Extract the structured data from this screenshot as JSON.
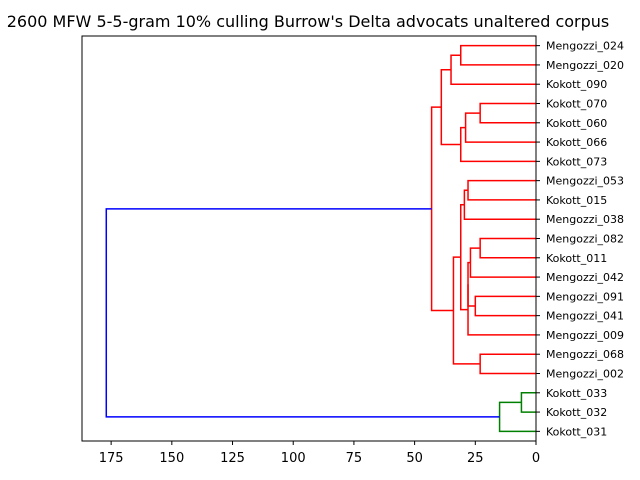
{
  "chart_data": {
    "type": "dendrogram",
    "orientation": "left",
    "title": "2600 MFW 5-5-gram 10% culling Burrow's Delta advocats unaltered corpus",
    "xlim": [
      187,
      0
    ],
    "xticks": [
      175,
      150,
      125,
      100,
      75,
      50,
      25,
      0
    ],
    "xtick_labels": [
      "175",
      "150",
      "125",
      "100",
      "75",
      "50",
      "25",
      "0"
    ],
    "colors": {
      "cluster_a": "#ff0000",
      "cluster_b": "#008000",
      "root": "#0000ff"
    },
    "leaves": [
      "Mengozzi_024",
      "Mengozzi_020",
      "Kokott_090",
      "Kokott_070",
      "Kokott_060",
      "Kokott_066",
      "Kokott_073",
      "Mengozzi_053",
      "Kokott_015",
      "Mengozzi_038",
      "Mengozzi_082",
      "Kokott_011",
      "Mengozzi_042",
      "Mengozzi_091",
      "Mengozzi_041",
      "Mengozzi_009",
      "Mengozzi_068",
      "Mengozzi_002",
      "Kokott_033",
      "Kokott_032",
      "Kokott_031"
    ],
    "merges": [
      {
        "id": "m1",
        "left": "Mengozzi_024",
        "right": "Mengozzi_020",
        "height": 31,
        "color": "cluster_a"
      },
      {
        "id": "m2",
        "left": "m1",
        "right": "Kokott_090",
        "height": 35,
        "color": "cluster_a"
      },
      {
        "id": "m3",
        "left": "Kokott_070",
        "right": "Kokott_060",
        "height": 23,
        "color": "cluster_a"
      },
      {
        "id": "m4",
        "left": "m3",
        "right": "Kokott_066",
        "height": 29,
        "color": "cluster_a"
      },
      {
        "id": "m5",
        "left": "m4",
        "right": "Kokott_073",
        "height": 31,
        "color": "cluster_a"
      },
      {
        "id": "m6",
        "left": "m2",
        "right": "m5",
        "height": 39,
        "color": "cluster_a"
      },
      {
        "id": "m7",
        "left": "Mengozzi_053",
        "right": "Kokott_015",
        "height": 28,
        "color": "cluster_a"
      },
      {
        "id": "m8",
        "left": "m7",
        "right": "Mengozzi_038",
        "height": 29.5,
        "color": "cluster_a"
      },
      {
        "id": "m9",
        "left": "Mengozzi_082",
        "right": "Kokott_011",
        "height": 23,
        "color": "cluster_a"
      },
      {
        "id": "m10",
        "left": "m9",
        "right": "Mengozzi_042",
        "height": 27,
        "color": "cluster_a"
      },
      {
        "id": "m11",
        "left": "Mengozzi_091",
        "right": "Mengozzi_041",
        "height": 25,
        "color": "cluster_a"
      },
      {
        "id": "m12",
        "left": "m10",
        "right": "m11",
        "height": 28,
        "color": "cluster_a"
      },
      {
        "id": "m13",
        "left": "m12",
        "right": "Mengozzi_009",
        "height": 28,
        "color": "cluster_a"
      },
      {
        "id": "m14",
        "left": "m8",
        "right": "m13",
        "height": 31,
        "color": "cluster_a"
      },
      {
        "id": "m15",
        "left": "Mengozzi_068",
        "right": "Mengozzi_002",
        "height": 23,
        "color": "cluster_a"
      },
      {
        "id": "m16",
        "left": "m14",
        "right": "m15",
        "height": 34,
        "color": "cluster_a"
      },
      {
        "id": "m17",
        "left": "m6",
        "right": "m16",
        "height": 43,
        "color": "cluster_a"
      },
      {
        "id": "m18",
        "left": "Kokott_033",
        "right": "Kokott_032",
        "height": 6,
        "color": "cluster_b"
      },
      {
        "id": "m19",
        "left": "m18",
        "right": "Kokott_031",
        "height": 15,
        "color": "cluster_b"
      },
      {
        "id": "m20",
        "left": "m17",
        "right": "m19",
        "height": 177,
        "color": "root"
      }
    ]
  }
}
